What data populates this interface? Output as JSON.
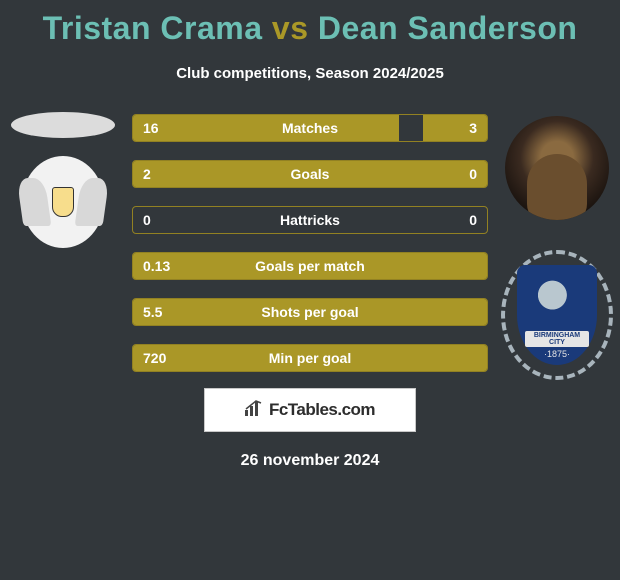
{
  "title_player1": "Tristan Crama",
  "title_vs": "vs",
  "title_player2": "Dean Sanderson",
  "title_color_p1": "#6cbfb4",
  "title_color_vs": "#aa9827",
  "title_color_p2": "#6cbfb4",
  "subtitle": "Club competitions, Season 2024/2025",
  "footer_site": "FcTables.com",
  "date": "26 november 2024",
  "bar_color": "#aa9727",
  "bar_border_color": "#928122",
  "background_color": "#32373b",
  "club_right_name": "BIRMINGHAM CITY",
  "club_right_year": "·1875·",
  "stats": [
    {
      "label": "Matches",
      "left_val": "16",
      "right_val": "3",
      "left_pct": 75,
      "right_pct": 18
    },
    {
      "label": "Goals",
      "left_val": "2",
      "right_val": "0",
      "left_pct": 100,
      "right_pct": 0
    },
    {
      "label": "Hattricks",
      "left_val": "0",
      "right_val": "0",
      "left_pct": 0,
      "right_pct": 0
    },
    {
      "label": "Goals per match",
      "left_val": "0.13",
      "right_val": "",
      "left_pct": 100,
      "right_pct": 0
    },
    {
      "label": "Shots per goal",
      "left_val": "5.5",
      "right_val": "",
      "left_pct": 100,
      "right_pct": 0
    },
    {
      "label": "Min per goal",
      "left_val": "720",
      "right_val": "",
      "left_pct": 100,
      "right_pct": 0
    }
  ]
}
